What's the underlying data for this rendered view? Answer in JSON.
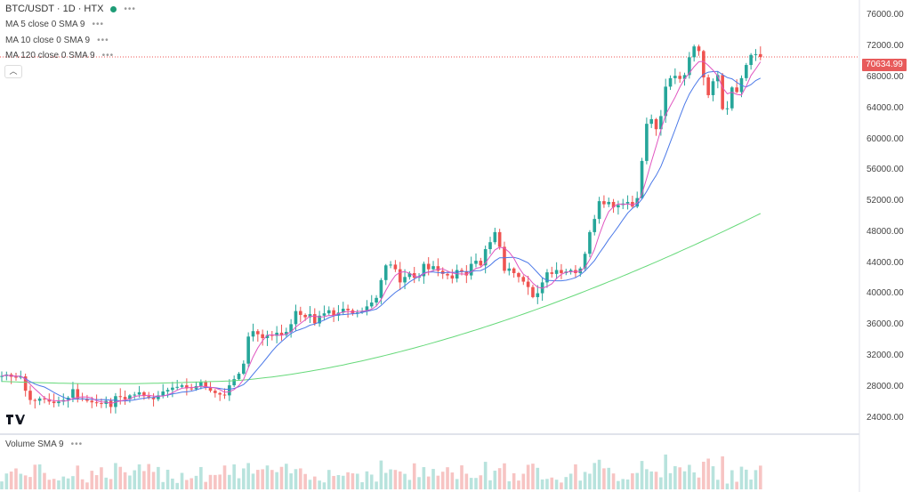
{
  "header": {
    "symbol": "BTC/USDT · 1D · HTX",
    "status_color": "#1e9c76",
    "menu_dots": "•••"
  },
  "indicators": [
    {
      "label": "MA 5 close 0 SMA 9",
      "color": "#e055c0"
    },
    {
      "label": "MA 10 close 0 SMA 9",
      "color": "#4b79e8"
    },
    {
      "label": "MA 120 close 0 SMA 9",
      "color": "#66d97a"
    }
  ],
  "volume_legend": "Volume SMA 9",
  "current_price": "70634.99",
  "colors": {
    "up": "#26a69a",
    "down": "#ef5350",
    "up_vol": "#b8e3dd",
    "down_vol": "#f7c4c3"
  },
  "chart_data": {
    "type": "candlestick",
    "y_ticks": [
      "76000.00",
      "72000.00",
      "68000.00",
      "64000.00",
      "60000.00",
      "56000.00",
      "52000.00",
      "48000.00",
      "44000.00",
      "40000.00",
      "36000.00",
      "32000.00",
      "28000.00",
      "24000.00"
    ],
    "ylim": [
      22000,
      78000
    ],
    "last_price": 70634.99,
    "close": [
      29400,
      29600,
      29300,
      29200,
      29350,
      27500,
      26300,
      26200,
      26500,
      26400,
      26100,
      25900,
      26100,
      26300,
      26600,
      27700,
      26500,
      26400,
      26200,
      26000,
      25900,
      25800,
      26200,
      25400,
      26800,
      26700,
      26400,
      26900,
      27000,
      27300,
      26800,
      26600,
      26400,
      26900,
      27400,
      27600,
      27900,
      28000,
      28200,
      27800,
      27700,
      28100,
      28600,
      27900,
      27500,
      27200,
      27000,
      26900,
      28200,
      29000,
      29700,
      31000,
      34500,
      35200,
      34800,
      34300,
      34700,
      34600,
      35000,
      34700,
      35100,
      36100,
      37800,
      37300,
      37000,
      37400,
      36200,
      37200,
      37500,
      37900,
      37200,
      37600,
      38100,
      37900,
      37500,
      37600,
      37800,
      38400,
      38900,
      39500,
      41800,
      43700,
      43800,
      43200,
      41500,
      42200,
      42700,
      42100,
      42300,
      43900,
      43200,
      43600,
      43000,
      42600,
      42400,
      42000,
      43100,
      42900,
      42400,
      43900,
      44300,
      43700,
      45800,
      46700,
      48000,
      46100,
      43000,
      43300,
      42700,
      42200,
      41600,
      40900,
      39600,
      40100,
      41500,
      42800,
      42600,
      43100,
      42700,
      42900,
      43100,
      42700,
      43300,
      45200,
      48000,
      49700,
      52000,
      51600,
      51900,
      51200,
      51500,
      51700,
      51900,
      51300,
      52400,
      57200,
      62000,
      62600,
      61300,
      63000,
      66800,
      67900,
      68200,
      67800,
      68300,
      70600,
      72000,
      71400,
      68000,
      65700,
      67500,
      68300,
      63900,
      64000,
      66700,
      66100,
      67900,
      69600,
      70900,
      71000,
      70635
    ],
    "volume_scale": "relative",
    "series": [
      {
        "name": "MA 5"
      },
      {
        "name": "MA 10"
      },
      {
        "name": "MA 120"
      }
    ]
  }
}
